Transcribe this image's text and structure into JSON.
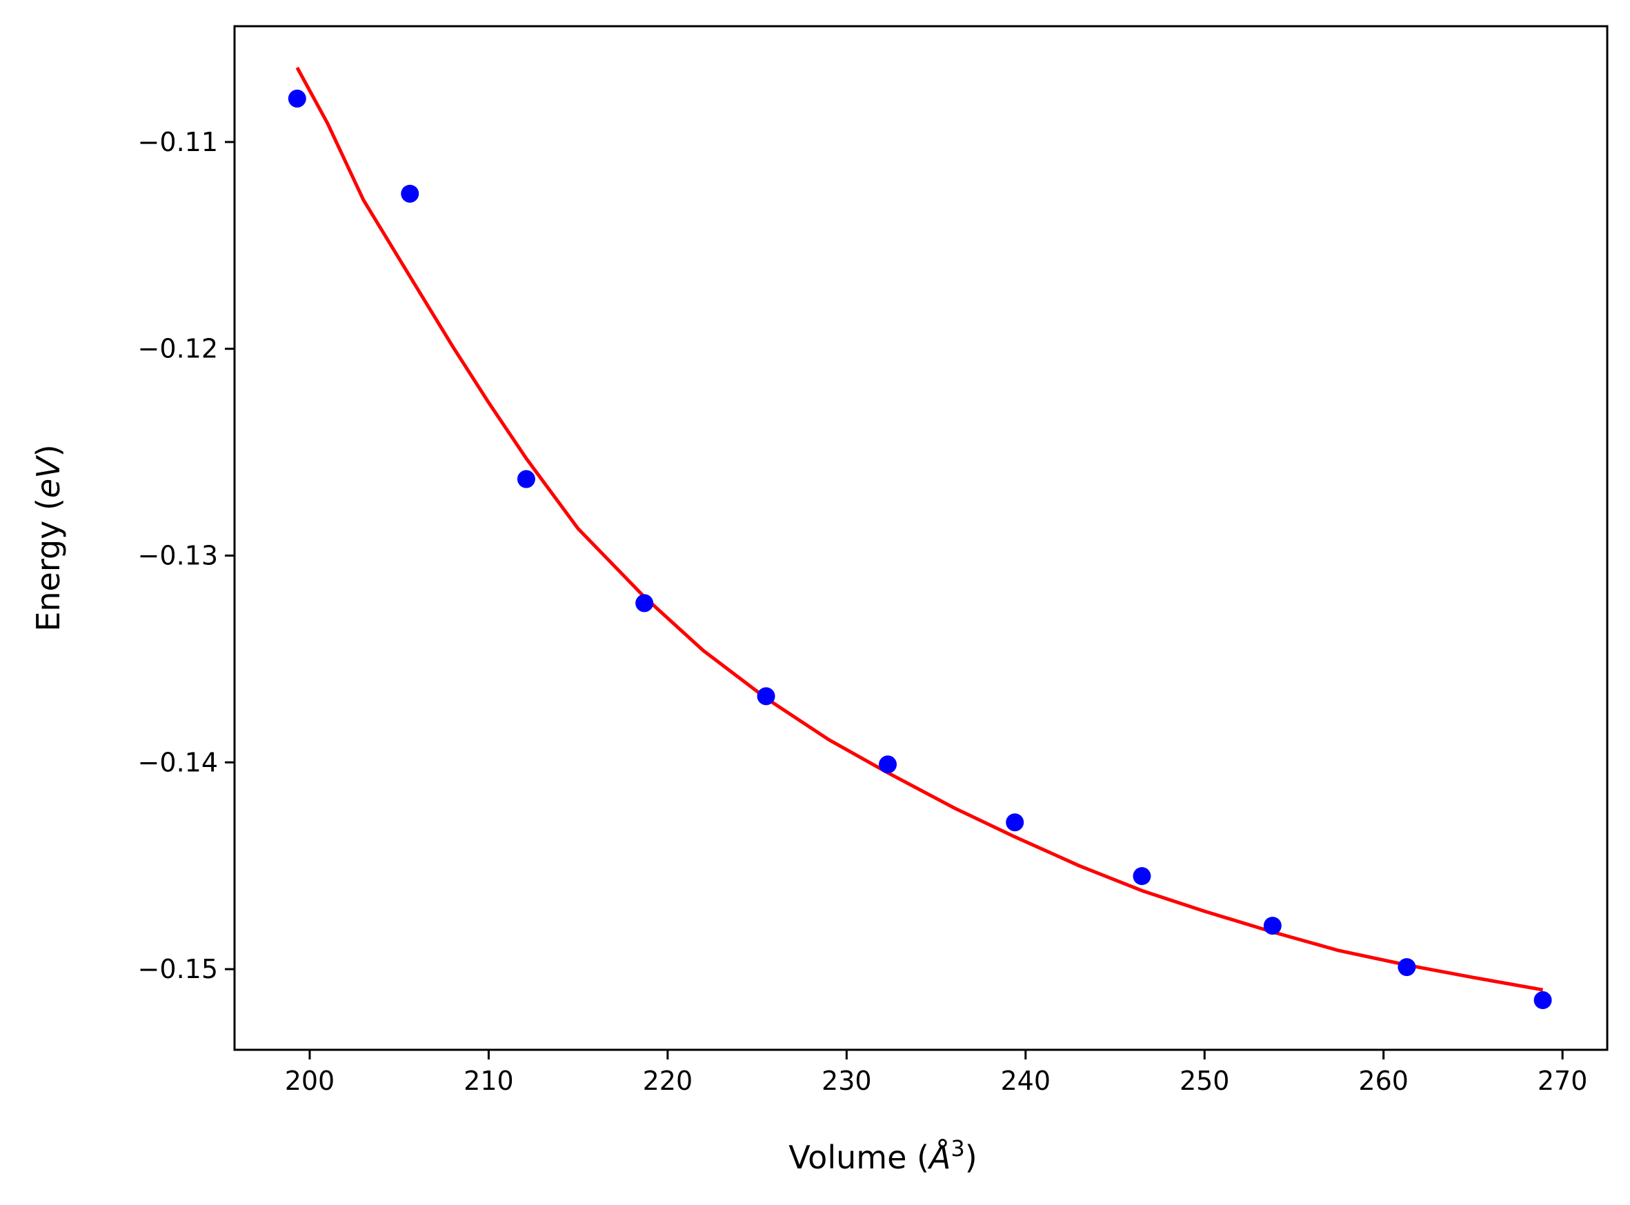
{
  "chart_data": {
    "type": "scatter",
    "xlabel_main": "Volume (",
    "xlabel_symbol": "Å",
    "xlabel_sup": "3",
    "xlabel_end": ")",
    "ylabel_main": "Energy (",
    "ylabel_symbol": "eV",
    "ylabel_end": ")",
    "xlim": [
      195.8,
      272.5
    ],
    "ylim": [
      -0.1539,
      -0.1044
    ],
    "x_ticks": [
      200,
      210,
      220,
      230,
      240,
      250,
      260,
      270
    ],
    "x_tick_labels": [
      "200",
      "210",
      "220",
      "230",
      "240",
      "250",
      "260",
      "270"
    ],
    "y_ticks": [
      -0.11,
      -0.12,
      -0.13,
      -0.14,
      -0.15
    ],
    "y_tick_labels": [
      "−0.11",
      "−0.12",
      "−0.13",
      "−0.14",
      "−0.15"
    ],
    "grid": false,
    "series": [
      {
        "kind": "points",
        "color": "#0000ff",
        "x": [
          199.3,
          205.6,
          212.1,
          218.7,
          225.5,
          232.3,
          239.4,
          246.5,
          253.8,
          261.3,
          268.9
        ],
        "y": [
          -0.1079,
          -0.1125,
          -0.1263,
          -0.1323,
          -0.1368,
          -0.1401,
          -0.1429,
          -0.1455,
          -0.1479,
          -0.1499,
          -0.1515
        ]
      },
      {
        "kind": "line",
        "color": "#ff0000",
        "x": [
          199.3,
          201.0,
          203.0,
          205.6,
          208.0,
          210.0,
          212.1,
          215.0,
          218.7,
          222.0,
          225.5,
          229.0,
          232.3,
          236.0,
          239.4,
          243.0,
          246.5,
          250.0,
          253.8,
          257.5,
          261.3,
          265.0,
          268.9
        ],
        "y": [
          -0.1064,
          -0.1091,
          -0.1128,
          -0.1165,
          -0.1199,
          -0.1226,
          -0.1253,
          -0.1287,
          -0.132,
          -0.1346,
          -0.1369,
          -0.1389,
          -0.1405,
          -0.1422,
          -0.1436,
          -0.145,
          -0.1462,
          -0.1472,
          -0.1482,
          -0.1491,
          -0.1498,
          -0.1504,
          -0.151
        ]
      }
    ]
  }
}
